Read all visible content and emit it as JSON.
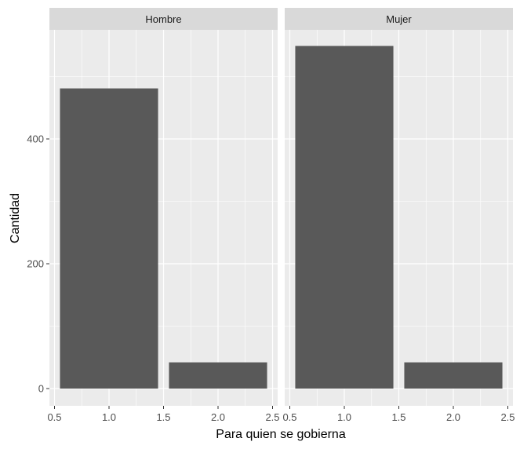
{
  "chart_data": {
    "type": "bar",
    "xlabel": "Para quien se gobierna",
    "ylabel": "Cantidad",
    "xlim": [
      0.5,
      2.5
    ],
    "ylim": [
      0,
      550
    ],
    "x_ticks": [
      "0.5",
      "1.0",
      "1.5",
      "2.0",
      "2.5"
    ],
    "x_tick_values": [
      0.5,
      1.0,
      1.5,
      2.0,
      2.5
    ],
    "y_ticks": [
      "0",
      "200",
      "400"
    ],
    "y_tick_values": [
      0,
      200,
      400
    ],
    "grid": true,
    "colors": {
      "bar": "#595959",
      "panel": "#ebebeb",
      "strip": "#d9d9d9",
      "grid": "#ffffff"
    },
    "facets": [
      {
        "label": "Hombre",
        "x": [
          1,
          2
        ],
        "values": [
          481,
          42
        ]
      },
      {
        "label": "Mujer",
        "x": [
          1,
          2
        ],
        "values": [
          549,
          42
        ]
      }
    ]
  }
}
